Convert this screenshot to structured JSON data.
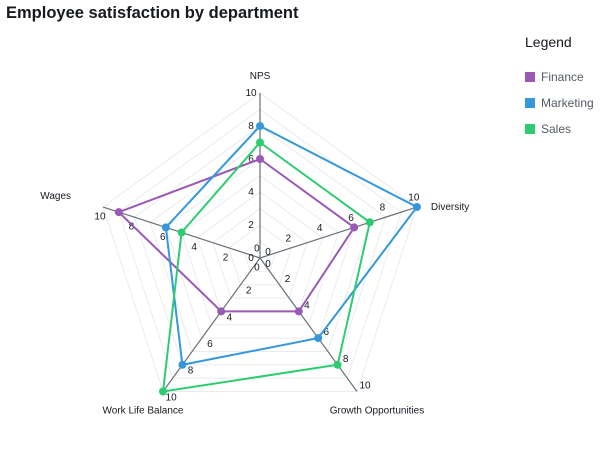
{
  "chart_data": {
    "type": "radar",
    "title": "Employee satisfaction by department",
    "axes": [
      "NPS",
      "Diversity",
      "Growth Opportunities",
      "Work Life Balance",
      "Wages"
    ],
    "range": [
      0,
      10
    ],
    "ticks": [
      0,
      2,
      4,
      6,
      8,
      10
    ],
    "grid": true,
    "legend_position": "top-right",
    "legend_title": "Legend",
    "series": [
      {
        "name": "Finance",
        "color": "#9b59b6",
        "values": [
          6,
          6,
          4,
          4,
          9
        ]
      },
      {
        "name": "Marketing",
        "color": "#3498db",
        "values": [
          8,
          10,
          6,
          8,
          6
        ]
      },
      {
        "name": "Sales",
        "color": "#2ecc71",
        "values": [
          7,
          7,
          8,
          10,
          5
        ]
      }
    ]
  }
}
